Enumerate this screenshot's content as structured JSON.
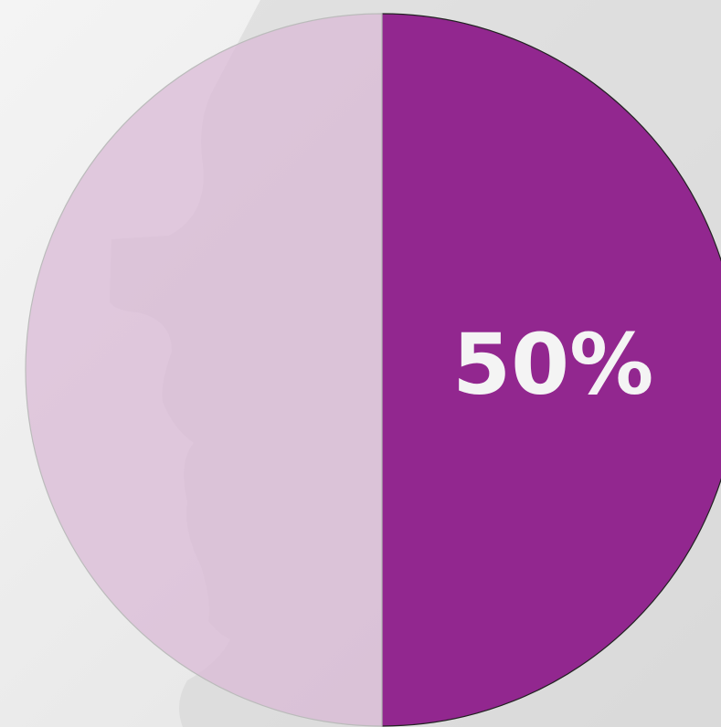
{
  "chart_data": {
    "type": "pie",
    "values": [
      50,
      50
    ],
    "value_labels": [
      "50%",
      null
    ],
    "colors": [
      "#92278f",
      "#d9b8d6"
    ]
  }
}
